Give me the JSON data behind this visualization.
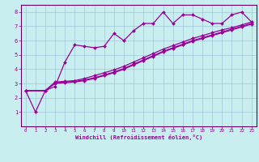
{
  "title": "",
  "xlabel": "Windchill (Refroidissement éolien,°C)",
  "background_color": "#c8eef0",
  "grid_color": "#a0c8d8",
  "line_color": "#990099",
  "spine_color": "#660066",
  "xlim": [
    -0.5,
    23.5
  ],
  "ylim": [
    0,
    8.5
  ],
  "xticks": [
    0,
    1,
    2,
    3,
    4,
    5,
    6,
    7,
    8,
    9,
    10,
    11,
    12,
    13,
    14,
    15,
    16,
    17,
    18,
    19,
    20,
    21,
    22,
    23
  ],
  "yticks": [
    1,
    2,
    3,
    4,
    5,
    6,
    7,
    8
  ],
  "series1_x": [
    0,
    1,
    2,
    3,
    4,
    5,
    6,
    7,
    8,
    9,
    10,
    11,
    12,
    13,
    14,
    15,
    16,
    17,
    18,
    19,
    20,
    21,
    22,
    23
  ],
  "series1_y": [
    2.5,
    1.0,
    2.5,
    2.8,
    4.5,
    5.7,
    5.6,
    5.5,
    5.6,
    6.5,
    6.0,
    6.7,
    7.2,
    7.2,
    8.0,
    7.2,
    7.8,
    7.8,
    7.5,
    7.2,
    7.2,
    7.8,
    8.0,
    7.3
  ],
  "series2_x": [
    0,
    2,
    3,
    4,
    5,
    6,
    7,
    8,
    9,
    10,
    11,
    12,
    13,
    14,
    15,
    16,
    17,
    18,
    19,
    20,
    21,
    22,
    23
  ],
  "series2_y": [
    2.5,
    2.5,
    3.1,
    3.15,
    3.2,
    3.35,
    3.55,
    3.75,
    3.95,
    4.2,
    4.5,
    4.8,
    5.1,
    5.4,
    5.65,
    5.9,
    6.15,
    6.35,
    6.55,
    6.75,
    6.9,
    7.1,
    7.3
  ],
  "series3_x": [
    0,
    2,
    3,
    4,
    5,
    6,
    7,
    8,
    9,
    10,
    11,
    12,
    13,
    14,
    15,
    16,
    17,
    18,
    19,
    20,
    21,
    22,
    23
  ],
  "series3_y": [
    2.5,
    2.5,
    3.0,
    3.05,
    3.1,
    3.2,
    3.35,
    3.55,
    3.75,
    4.0,
    4.3,
    4.6,
    4.9,
    5.2,
    5.45,
    5.7,
    5.95,
    6.15,
    6.35,
    6.55,
    6.75,
    6.95,
    7.15
  ],
  "series4_x": [
    0,
    2,
    3,
    4,
    5,
    6,
    7,
    8,
    9,
    10,
    11,
    12,
    13,
    14,
    15,
    16,
    17,
    18,
    19,
    20,
    21,
    22,
    23
  ],
  "series4_y": [
    2.5,
    2.5,
    3.05,
    3.1,
    3.15,
    3.25,
    3.4,
    3.6,
    3.8,
    4.05,
    4.35,
    4.65,
    4.95,
    5.25,
    5.5,
    5.75,
    6.0,
    6.2,
    6.4,
    6.6,
    6.8,
    7.0,
    7.2
  ]
}
